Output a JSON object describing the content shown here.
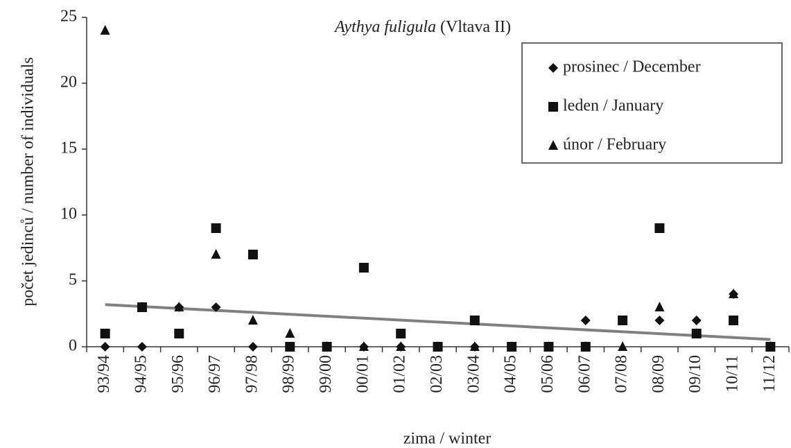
{
  "chart_data": {
    "type": "scatter",
    "title_species": "Aythya fuligula",
    "title_location": "(Vltava II)",
    "x_label": "zima / winter",
    "y_label": "počet jedinců / number of individuals",
    "categories": [
      "93/94",
      "94/95",
      "95/96",
      "96/97",
      "97/98",
      "98/99",
      "99/00",
      "00/01",
      "01/02",
      "02/03",
      "03/04",
      "04/05",
      "05/06",
      "06/07",
      "07/08",
      "08/09",
      "09/10",
      "10/11",
      "11/12"
    ],
    "series": [
      {
        "name": "prosinec / December",
        "marker": "diamond",
        "color": "#111",
        "values": [
          0,
          0,
          3,
          3,
          0,
          0,
          0,
          0,
          0,
          0,
          0,
          0,
          0,
          2,
          2,
          2,
          2,
          4,
          0
        ]
      },
      {
        "name": "leden / January",
        "marker": "square",
        "color": "#111",
        "values": [
          1,
          3,
          1,
          9,
          7,
          0,
          0,
          6,
          1,
          0,
          2,
          0,
          0,
          0,
          2,
          9,
          1,
          2,
          0
        ]
      },
      {
        "name": "únor / February",
        "marker": "triangle",
        "color": "#111",
        "values": [
          24,
          3,
          3,
          7,
          2,
          1,
          0,
          0,
          0,
          0,
          0,
          0,
          0,
          0,
          0,
          3,
          1,
          4,
          0
        ]
      }
    ],
    "trend": {
      "color": "#808080",
      "values": [
        3.2,
        0.55
      ]
    },
    "ylim": [
      0,
      25
    ],
    "yticks": [
      0,
      5,
      10,
      15,
      20,
      25
    ],
    "legend": "upper right"
  }
}
